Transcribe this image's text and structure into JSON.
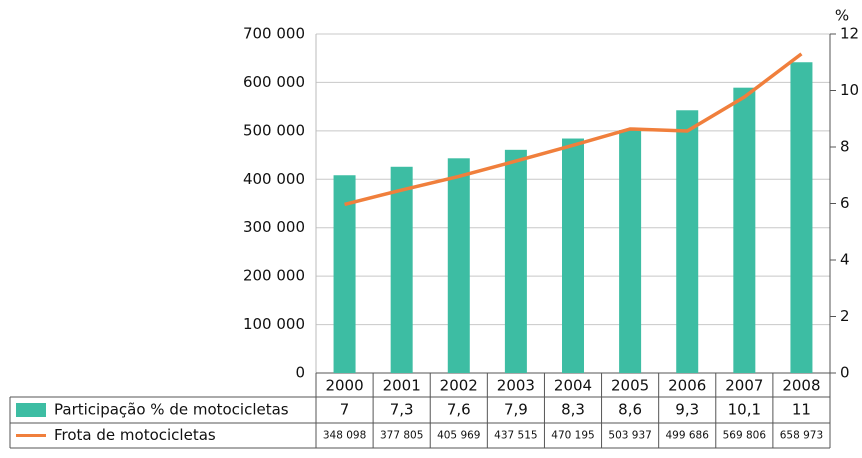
{
  "chart_data": {
    "type": "bar_line",
    "categories": [
      "2000",
      "2001",
      "2002",
      "2003",
      "2004",
      "2005",
      "2006",
      "2007",
      "2008"
    ],
    "series": [
      {
        "name": "Participação % de motocicletas",
        "type": "bar",
        "axis": "y2",
        "color": "#3dbda3",
        "values": [
          7,
          7.3,
          7.6,
          7.9,
          8.3,
          8.6,
          9.3,
          10.1,
          11
        ],
        "value_labels": [
          "7",
          "7,3",
          "7,6",
          "7,9",
          "8,3",
          "8,6",
          "9,3",
          "10,1",
          "11"
        ]
      },
      {
        "name": "Frota de motocicletas",
        "type": "line",
        "axis": "y",
        "color": "#f07f3c",
        "values": [
          348098,
          377805,
          405969,
          437515,
          470195,
          503937,
          499686,
          569806,
          658973
        ],
        "value_labels": [
          "348 098",
          "377 805",
          "405 969",
          "437 515",
          "470 195",
          "503 937",
          "499 686",
          "569 806",
          "658 973"
        ]
      }
    ],
    "ylim": [
      0,
      700000
    ],
    "yticks": [
      0,
      {
        "value": 100000,
        "label": "100 000"
      },
      {
        "value": 200000,
        "label": "200 000"
      },
      {
        "value": 300000,
        "label": "300 000"
      },
      {
        "value": 400000,
        "label": "400 000"
      },
      {
        "value": 500000,
        "label": "500 000"
      },
      {
        "value": 600000,
        "label": "600 000"
      },
      {
        "value": 700000,
        "label": "700 000"
      }
    ],
    "y2label": "%",
    "y2lim": [
      0,
      12
    ],
    "y2ticks": [
      0,
      2,
      4,
      6,
      8,
      10,
      12
    ],
    "grid": true
  }
}
